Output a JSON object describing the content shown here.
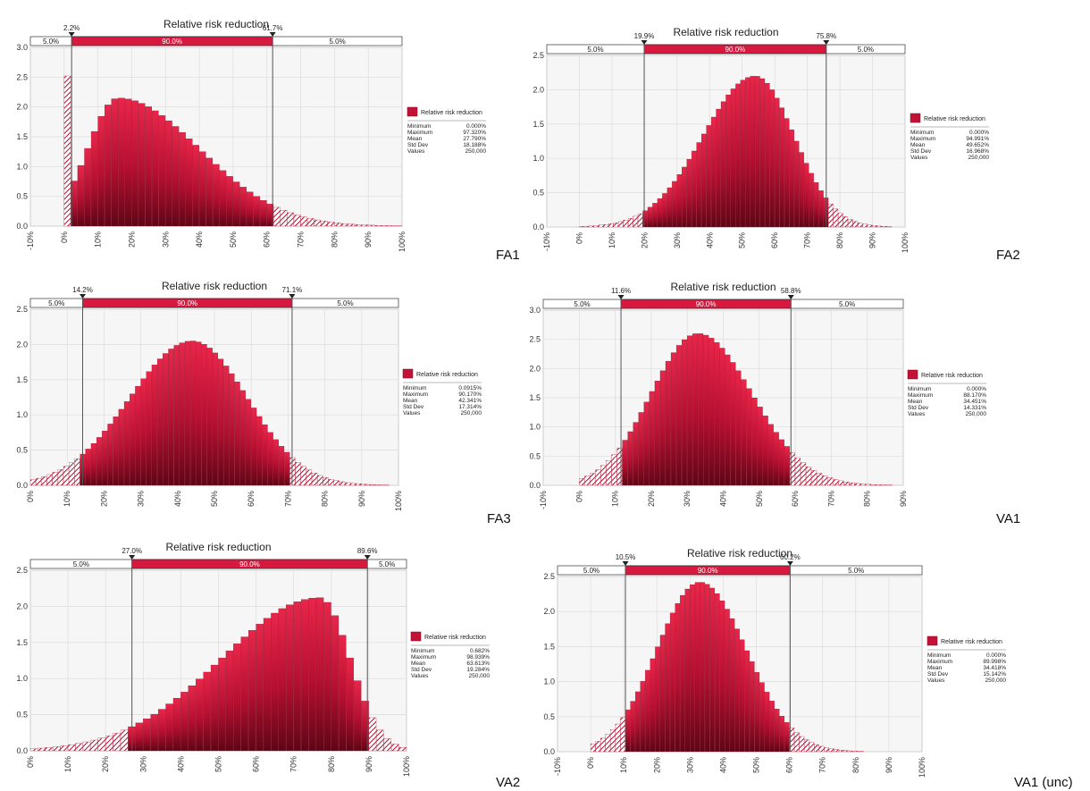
{
  "chart_data": [
    {
      "id": "FA1",
      "type": "bar",
      "title": "Relative risk reduction",
      "panel_label": "FA1",
      "xlim": [
        -10,
        100
      ],
      "x_ticks": [
        "-10%",
        "0%",
        "10%",
        "20%",
        "30%",
        "40%",
        "50%",
        "60%",
        "70%",
        "80%",
        "90%",
        "100%"
      ],
      "ylim": [
        0,
        3.0
      ],
      "y_ticks": [
        "0.0",
        "0.5",
        "1.0",
        "1.5",
        "2.0",
        "2.5",
        "3.0"
      ],
      "bin_width": 2,
      "curve": {
        "peak": 2.15,
        "mode": 16,
        "left_sd": 9,
        "right_sd": 24,
        "zero_bin_value": 2.52
      },
      "low_marker": {
        "value": 2.2,
        "label": "2.2%"
      },
      "high_marker": {
        "value": 61.7,
        "label": "61.7%"
      },
      "band_labels": [
        "5.0%",
        "90.0%",
        "5.0%"
      ],
      "legend": {
        "series": "Relative risk reduction",
        "stats": [
          [
            "Minimum",
            "0.000%"
          ],
          [
            "Maximum",
            "97.320%"
          ],
          [
            "Mean",
            "27.790%"
          ],
          [
            "Std Dev",
            "18.188%"
          ],
          [
            "Values",
            "250,000"
          ]
        ]
      },
      "grid": true
    },
    {
      "id": "FA2",
      "type": "bar",
      "title": "Relative risk reduction",
      "panel_label": "FA2",
      "xlim": [
        -10,
        100
      ],
      "x_ticks": [
        "-10%",
        "0%",
        "10%",
        "20%",
        "30%",
        "40%",
        "50%",
        "60%",
        "70%",
        "80%",
        "90%",
        "100%"
      ],
      "ylim": [
        0,
        2.5
      ],
      "y_ticks": [
        "0.0",
        "0.5",
        "1.0",
        "1.5",
        "2.0",
        "2.5"
      ],
      "bin_width": 1.5,
      "curve": {
        "peak": 2.2,
        "mode": 54,
        "left_sd": 16,
        "right_sd": 12
      },
      "low_marker": {
        "value": 19.9,
        "label": "19.9%"
      },
      "high_marker": {
        "value": 75.8,
        "label": "75.8%"
      },
      "band_labels": [
        "5.0%",
        "90.0%",
        "5.0%"
      ],
      "legend": {
        "series": "Relative risk reduction",
        "stats": [
          [
            "Minimum",
            "0.000%"
          ],
          [
            "Maximum",
            "94.991%"
          ],
          [
            "Mean",
            "49.652%"
          ],
          [
            "Std Dev",
            "16.968%"
          ],
          [
            "Values",
            "250,000"
          ]
        ]
      },
      "grid": true
    },
    {
      "id": "FA3",
      "type": "bar",
      "title": "Relative risk reduction",
      "panel_label": "FA3",
      "xlim": [
        0,
        100
      ],
      "x_ticks": [
        "0%",
        "10%",
        "20%",
        "30%",
        "40%",
        "50%",
        "60%",
        "70%",
        "80%",
        "90%",
        "100%"
      ],
      "ylim": [
        0,
        2.5
      ],
      "y_ticks": [
        "0.0",
        "0.5",
        "1.0",
        "1.5",
        "2.0",
        "2.5"
      ],
      "bin_width": 1.5,
      "curve": {
        "peak": 2.05,
        "mode": 44,
        "left_sd": 17,
        "right_sd": 15
      },
      "low_marker": {
        "value": 14.2,
        "label": "14.2%"
      },
      "high_marker": {
        "value": 71.1,
        "label": "71.1%"
      },
      "band_labels": [
        "5.0%",
        "90.0%",
        "5.0%"
      ],
      "legend": {
        "series": "Relative risk reduction",
        "stats": [
          [
            "Minimum",
            "0.0915%"
          ],
          [
            "Maximum",
            "90.170%"
          ],
          [
            "Mean",
            "42.341%"
          ],
          [
            "Std Dev",
            "17.314%"
          ],
          [
            "Values",
            "250,000"
          ]
        ]
      },
      "grid": true
    },
    {
      "id": "VA1",
      "type": "bar",
      "title": "Relative risk reduction",
      "panel_label": "VA1",
      "xlim": [
        -10,
        90
      ],
      "x_ticks": [
        "-10%",
        "0%",
        "10%",
        "20%",
        "30%",
        "40%",
        "50%",
        "60%",
        "70%",
        "80%",
        "90%"
      ],
      "ylim": [
        0,
        3.0
      ],
      "y_ticks": [
        "0.0",
        "0.5",
        "1.0",
        "1.5",
        "2.0",
        "2.5",
        "3.0"
      ],
      "bin_width": 1.5,
      "curve": {
        "peak": 2.6,
        "mode": 33,
        "left_sd": 13,
        "right_sd": 15
      },
      "low_marker": {
        "value": 11.6,
        "label": "11.6%"
      },
      "high_marker": {
        "value": 58.8,
        "label": "58.8%"
      },
      "band_labels": [
        "5.0%",
        "90.0%",
        "5.0%"
      ],
      "legend": {
        "series": "Relative risk reduction",
        "stats": [
          [
            "Minimum",
            "0.000%"
          ],
          [
            "Maximum",
            "88.170%"
          ],
          [
            "Mean",
            "34.451%"
          ],
          [
            "Std Dev",
            "14.331%"
          ],
          [
            "Values",
            "250,000"
          ]
        ]
      },
      "grid": true
    },
    {
      "id": "VA2",
      "type": "bar",
      "title": "Relative risk reduction",
      "panel_label": "VA2",
      "xlim": [
        0,
        100
      ],
      "x_ticks": [
        "0%",
        "10%",
        "20%",
        "30%",
        "40%",
        "50%",
        "60%",
        "70%",
        "80%",
        "90%",
        "100%"
      ],
      "ylim": [
        0,
        2.5
      ],
      "y_ticks": [
        "0.0",
        "0.5",
        "1.0",
        "1.5",
        "2.0",
        "2.5"
      ],
      "bin_width": 2,
      "curve": {
        "peak": 2.12,
        "mode": 77,
        "left_sd": 26,
        "right_sd": 8
      },
      "low_marker": {
        "value": 27.0,
        "label": "27.0%"
      },
      "high_marker": {
        "value": 89.6,
        "label": "89.6%"
      },
      "band_labels": [
        "5.0%",
        "90.0%",
        "5.0%"
      ],
      "legend": {
        "series": "Relative risk reduction",
        "stats": [
          [
            "Minimum",
            "0.682%"
          ],
          [
            "Maximum",
            "98.939%"
          ],
          [
            "Mean",
            "63.613%"
          ],
          [
            "Std Dev",
            "19.284%"
          ],
          [
            "Values",
            "250,000"
          ]
        ]
      },
      "grid": true
    },
    {
      "id": "VA1unc",
      "type": "bar",
      "title": "Relative risk reduction",
      "panel_label": "VA1 (unc)",
      "xlim": [
        -10,
        100
      ],
      "x_ticks": [
        "-10%",
        "0%",
        "10%",
        "20%",
        "30%",
        "40%",
        "50%",
        "60%",
        "70%",
        "80%",
        "90%",
        "100%"
      ],
      "ylim": [
        0,
        2.5
      ],
      "y_ticks": [
        "0.0",
        "0.5",
        "1.0",
        "1.5",
        "2.0",
        "2.5"
      ],
      "bin_width": 1.5,
      "curve": {
        "peak": 2.42,
        "mode": 33,
        "left_sd": 13,
        "right_sd": 14
      },
      "low_marker": {
        "value": 10.5,
        "label": "10.5%"
      },
      "high_marker": {
        "value": 60.2,
        "label": "60.2%"
      },
      "band_labels": [
        "5.0%",
        "90.0%",
        "5.0%"
      ],
      "legend": {
        "series": "Relative risk reduction",
        "stats": [
          [
            "Minimum",
            "0.000%"
          ],
          [
            "Maximum",
            "89.998%"
          ],
          [
            "Mean",
            "34.418%"
          ],
          [
            "Std Dev",
            "15.142%"
          ],
          [
            "Values",
            "250,000"
          ]
        ]
      },
      "grid": true
    }
  ]
}
